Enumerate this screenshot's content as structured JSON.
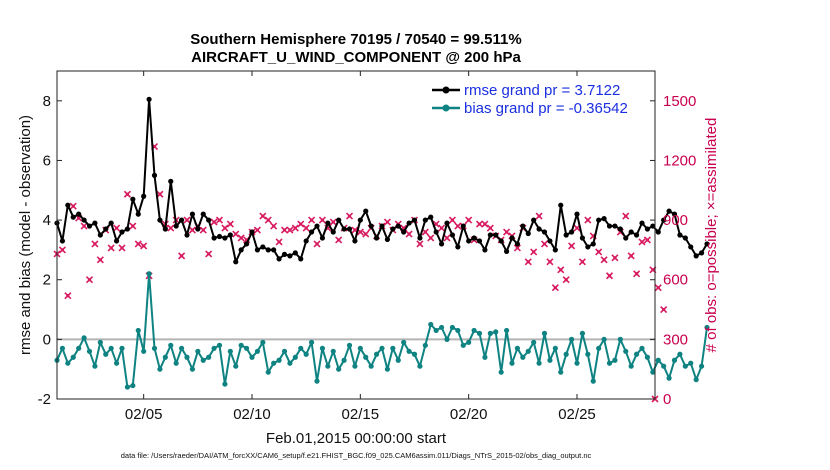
{
  "chart_data": {
    "type": "line",
    "title": "Southern Hemisphere 70195 / 70540 = 99.511%",
    "subtitle": "AIRCRAFT_U_WIND_COMPONENT @ 200 hPa",
    "xlabel": "Feb.01,2015 00:00:00 start",
    "ylabel": "rmse and bias (model - observation)",
    "y2label": "# of obs: o=possible; ×=assimilated",
    "footer": "data file: /Users/raeder/DAI/ATM_forcXX/CAM6_setup/f.e21.FHIST_BGC.f09_025.CAM6assim.011/Diags_NTrS_2015-02/obs_diag_output.nc",
    "xlim": [
      1,
      28.6
    ],
    "ylim": [
      -2,
      9
    ],
    "y2lim": [
      0,
      1650
    ],
    "xticks": [
      5,
      10,
      15,
      20,
      25
    ],
    "xtick_labels": [
      "02/05",
      "02/10",
      "02/15",
      "02/20",
      "02/25"
    ],
    "yticks": [
      -2,
      0,
      2,
      4,
      6,
      8
    ],
    "ytick_labels": [
      "-2",
      "0",
      "2",
      "4",
      "6",
      "8"
    ],
    "y2ticks": [
      0,
      300,
      600,
      900,
      1200,
      1500
    ],
    "y2tick_labels": [
      "0",
      "300",
      "600",
      "900",
      "1200",
      "1500"
    ],
    "step_days": 0.25,
    "start_day": 1.0,
    "zero_line": 0,
    "colors": {
      "rmse": "#000000",
      "bias": "#0f8282",
      "obs": "#d81b60",
      "zero": "#b4b4b4"
    },
    "series": [
      {
        "name": "rmse grand pr = 3.7122",
        "values": [
          3.9,
          3.3,
          4.5,
          4.1,
          4.2,
          4.0,
          3.8,
          3.9,
          3.5,
          3.7,
          3.9,
          3.3,
          3.6,
          3.7,
          4.7,
          4.2,
          4.8,
          8.05,
          5.5,
          4.0,
          3.7,
          5.3,
          3.8,
          4.0,
          3.5,
          4.2,
          3.7,
          4.2,
          4.0,
          3.4,
          3.45,
          3.4,
          3.5,
          2.6,
          3.0,
          3.2,
          3.6,
          3.0,
          3.1,
          3.0,
          3.0,
          2.7,
          2.85,
          2.8,
          2.9,
          2.7,
          3.3,
          3.6,
          3.8,
          3.4,
          3.9,
          3.6,
          4.0,
          3.7,
          3.7,
          3.3,
          4.0,
          4.3,
          3.8,
          3.4,
          3.8,
          3.35,
          3.7,
          3.8,
          3.6,
          3.9,
          4.0,
          3.4,
          4.0,
          4.1,
          3.6,
          3.2,
          3.9,
          3.5,
          3.1,
          3.8,
          3.3,
          3.4,
          3.3,
          3.0,
          3.5,
          3.5,
          3.3,
          2.95,
          3.4,
          3.2,
          3.8,
          3.55,
          4.0,
          3.7,
          3.6,
          3.3,
          3.0,
          4.5,
          3.5,
          3.6,
          4.2,
          3.4,
          3.1,
          3.2,
          4.0,
          4.05,
          3.8,
          3.8,
          3.7,
          3.4,
          3.6,
          3.5,
          3.9,
          3.7,
          3.8,
          3.6,
          4.0,
          4.3,
          4.2,
          3.5,
          3.4,
          3.1,
          2.8,
          2.9,
          3.2
        ]
      },
      {
        "name": "bias grand pr = -0.36542",
        "values": [
          -0.7,
          -0.3,
          -0.8,
          -0.6,
          -0.3,
          0.05,
          -0.4,
          -0.9,
          -0.1,
          -0.5,
          -0.3,
          -0.8,
          -0.3,
          -1.6,
          -1.55,
          0.3,
          -0.4,
          2.2,
          -0.3,
          -1.0,
          -0.6,
          -0.2,
          -0.8,
          -0.3,
          -0.6,
          -1.0,
          -0.4,
          -0.7,
          -0.6,
          -0.3,
          -0.2,
          -1.5,
          -0.4,
          -0.9,
          -0.2,
          -0.3,
          -0.6,
          -0.4,
          -0.1,
          -1.1,
          -0.8,
          -0.7,
          -0.4,
          -0.8,
          -0.6,
          -0.3,
          -0.5,
          -0.1,
          -1.4,
          -0.3,
          -0.9,
          -0.4,
          -1.0,
          -0.7,
          -0.2,
          -0.9,
          -0.3,
          -0.6,
          -0.9,
          -0.5,
          -0.3,
          -1.0,
          -0.3,
          -0.7,
          -0.1,
          -0.4,
          -0.5,
          -0.9,
          -0.2,
          0.5,
          0.3,
          0.4,
          0.0,
          0.4,
          0.3,
          -0.2,
          -0.1,
          0.3,
          0.2,
          -0.6,
          0.2,
          0.25,
          -1.1,
          0.3,
          -0.8,
          -0.3,
          -0.6,
          -0.4,
          -0.1,
          -0.8,
          0.2,
          -0.7,
          -0.3,
          -1.1,
          -0.5,
          0.0,
          -0.8,
          0.2,
          -0.5,
          -1.4,
          -0.3,
          0.0,
          -0.8,
          -0.7,
          0.0,
          -0.4,
          -0.9,
          -0.5,
          -0.3,
          -0.6,
          -1.1,
          -0.7,
          -0.9,
          -1.3,
          -0.7,
          -0.5,
          -0.9,
          -0.8,
          -1.35,
          -0.9,
          0.4
        ]
      }
    ],
    "obs_counts": [
      730,
      750,
      520,
      970,
      910,
      870,
      600,
      780,
      700,
      850,
      760,
      860,
      760,
      1030,
      870,
      780,
      770,
      620,
      1270,
      1030,
      880,
      860,
      900,
      720,
      900,
      850,
      870,
      850,
      730,
      890,
      900,
      860,
      880,
      830,
      810,
      800,
      840,
      850,
      920,
      900,
      870,
      790,
      850,
      850,
      860,
      880,
      860,
      900,
      780,
      900,
      860,
      890,
      800,
      860,
      920,
      850,
      840,
      830,
      860,
      820,
      870,
      890,
      850,
      880,
      860,
      830,
      900,
      780,
      840,
      810,
      880,
      860,
      810,
      900,
      870,
      870,
      900,
      800,
      880,
      880,
      860,
      820,
      800,
      840,
      820,
      760,
      860,
      690,
      740,
      920,
      780,
      690,
      560,
      650,
      600,
      770,
      860,
      690,
      900,
      820,
      740,
      700,
      620,
      710,
      840,
      920,
      720,
      630,
      790,
      800,
      650,
      560,
      450
    ]
  },
  "legend": {
    "rmse_label": "rmse grand pr = 3.7122",
    "bias_label": "bias grand pr = -0.36542"
  }
}
